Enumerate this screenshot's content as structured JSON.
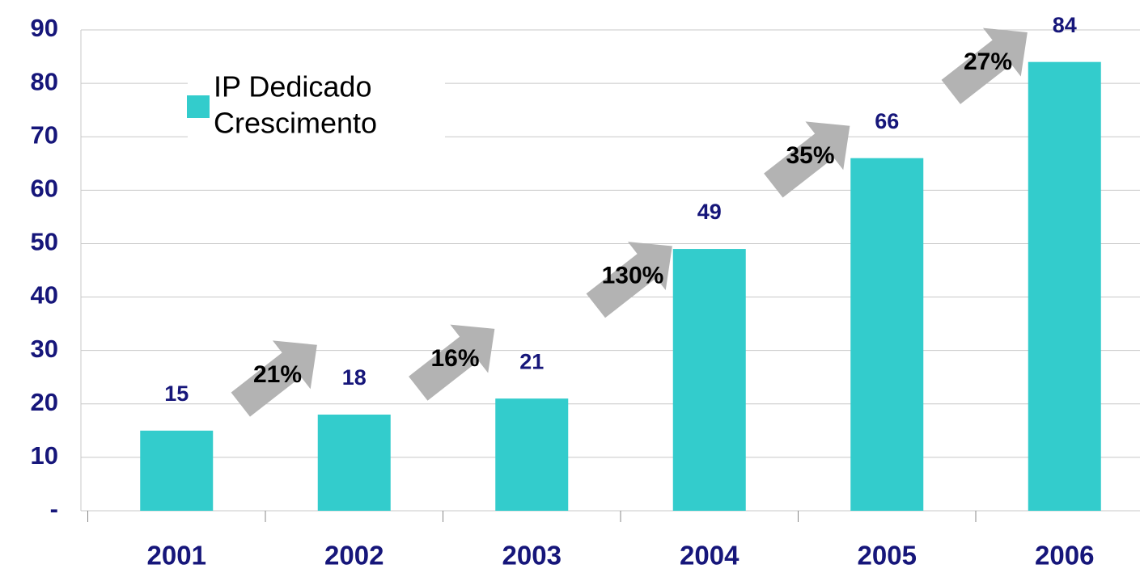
{
  "chart_data": {
    "type": "bar",
    "categories": [
      "2001",
      "2002",
      "2003",
      "2004",
      "2005",
      "2006"
    ],
    "series": [
      {
        "name": "IP Dedicado",
        "color": "#33cccc",
        "values": [
          15,
          18,
          21,
          49,
          66,
          84
        ]
      }
    ],
    "growth": {
      "name": "Crescimento",
      "color": "#b3b3b3",
      "labels": [
        "21%",
        "16%",
        "130%",
        "35%",
        "27%"
      ]
    },
    "ylim": [
      0,
      90
    ],
    "yticks": [
      {
        "value": 0,
        "label": "-"
      },
      10,
      20,
      30,
      40,
      50,
      60,
      70,
      80,
      90
    ],
    "grid": true
  }
}
